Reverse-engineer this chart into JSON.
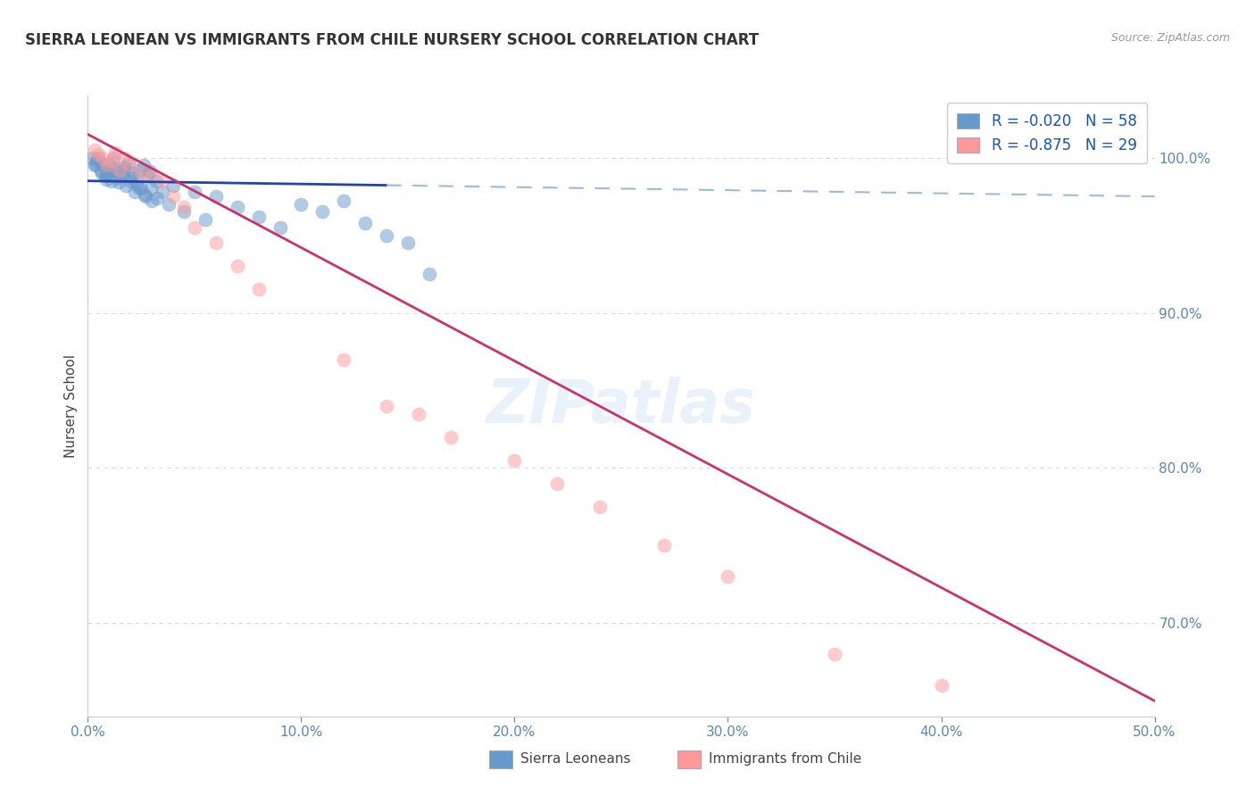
{
  "title": "SIERRA LEONEAN VS IMMIGRANTS FROM CHILE NURSERY SCHOOL CORRELATION CHART",
  "source": "Source: ZipAtlas.com",
  "ylabel": "Nursery School",
  "xlim": [
    0.0,
    50.0
  ],
  "ylim": [
    64.0,
    104.0
  ],
  "ytick_labels": [
    "70.0%",
    "80.0%",
    "90.0%",
    "100.0%"
  ],
  "ytick_values": [
    70.0,
    80.0,
    90.0,
    100.0
  ],
  "xtick_labels": [
    "0.0%",
    "10.0%",
    "20.0%",
    "30.0%",
    "40.0%",
    "50.0%"
  ],
  "xtick_values": [
    0.0,
    10.0,
    20.0,
    30.0,
    40.0,
    50.0
  ],
  "legend_r1": "-0.020",
  "legend_n1": "58",
  "legend_r2": "-0.875",
  "legend_n2": "29",
  "blue_color": "#6699CC",
  "pink_color": "#FF9999",
  "blue_line_color": "#2244AA",
  "pink_line_color": "#CC3366",
  "dashed_line_color": "#99BBDD",
  "axis_color": "#5588BB",
  "watermark": "ZIPatlas",
  "blue_line_solid_end_x": 14.0,
  "blue_line_y_at_0": 98.5,
  "blue_line_y_at_50": 97.5,
  "pink_line_y_at_0": 101.5,
  "pink_line_y_at_50": 65.0,
  "blue_scatter_x": [
    0.2,
    0.3,
    0.4,
    0.5,
    0.6,
    0.7,
    0.8,
    0.9,
    1.0,
    1.1,
    1.2,
    1.3,
    1.4,
    1.5,
    1.6,
    1.7,
    1.8,
    1.9,
    2.0,
    2.1,
    2.2,
    2.3,
    2.4,
    2.5,
    2.6,
    2.7,
    2.8,
    2.9,
    3.0,
    3.2,
    3.5,
    3.8,
    4.0,
    4.5,
    5.0,
    5.5,
    6.0,
    7.0,
    8.0,
    9.0,
    10.0,
    11.0,
    12.0,
    13.0,
    14.0,
    15.0,
    16.0,
    0.35,
    0.65,
    0.85,
    1.15,
    1.45,
    1.75,
    2.05,
    2.35,
    2.65,
    2.95,
    3.25
  ],
  "blue_scatter_y": [
    100.0,
    99.5,
    99.8,
    100.0,
    99.2,
    99.6,
    98.8,
    99.0,
    99.5,
    98.5,
    100.0,
    99.3,
    98.7,
    99.1,
    98.9,
    99.4,
    98.2,
    99.7,
    98.5,
    99.0,
    97.8,
    98.3,
    99.2,
    98.0,
    99.5,
    97.5,
    98.8,
    99.1,
    97.2,
    98.5,
    97.8,
    97.0,
    98.2,
    96.5,
    97.8,
    96.0,
    97.5,
    96.8,
    96.2,
    95.5,
    97.0,
    96.5,
    97.2,
    95.8,
    95.0,
    94.5,
    92.5,
    99.6,
    99.0,
    98.6,
    99.2,
    98.4,
    99.3,
    98.7,
    98.1,
    97.6,
    98.0,
    97.4
  ],
  "pink_scatter_x": [
    0.3,
    0.5,
    0.7,
    0.9,
    1.1,
    1.3,
    1.5,
    1.7,
    2.0,
    2.5,
    3.0,
    3.5,
    4.0,
    4.5,
    5.0,
    6.0,
    7.0,
    8.0,
    12.0,
    14.0,
    15.5,
    17.0,
    20.0,
    22.0,
    24.0,
    27.0,
    30.0,
    35.0,
    40.0
  ],
  "pink_scatter_y": [
    100.5,
    100.2,
    100.0,
    99.5,
    99.8,
    100.3,
    99.2,
    100.0,
    99.5,
    99.0,
    98.8,
    98.5,
    97.5,
    96.8,
    95.5,
    94.5,
    93.0,
    91.5,
    87.0,
    84.0,
    83.5,
    82.0,
    80.5,
    79.0,
    77.5,
    75.0,
    73.0,
    68.0,
    66.0
  ]
}
